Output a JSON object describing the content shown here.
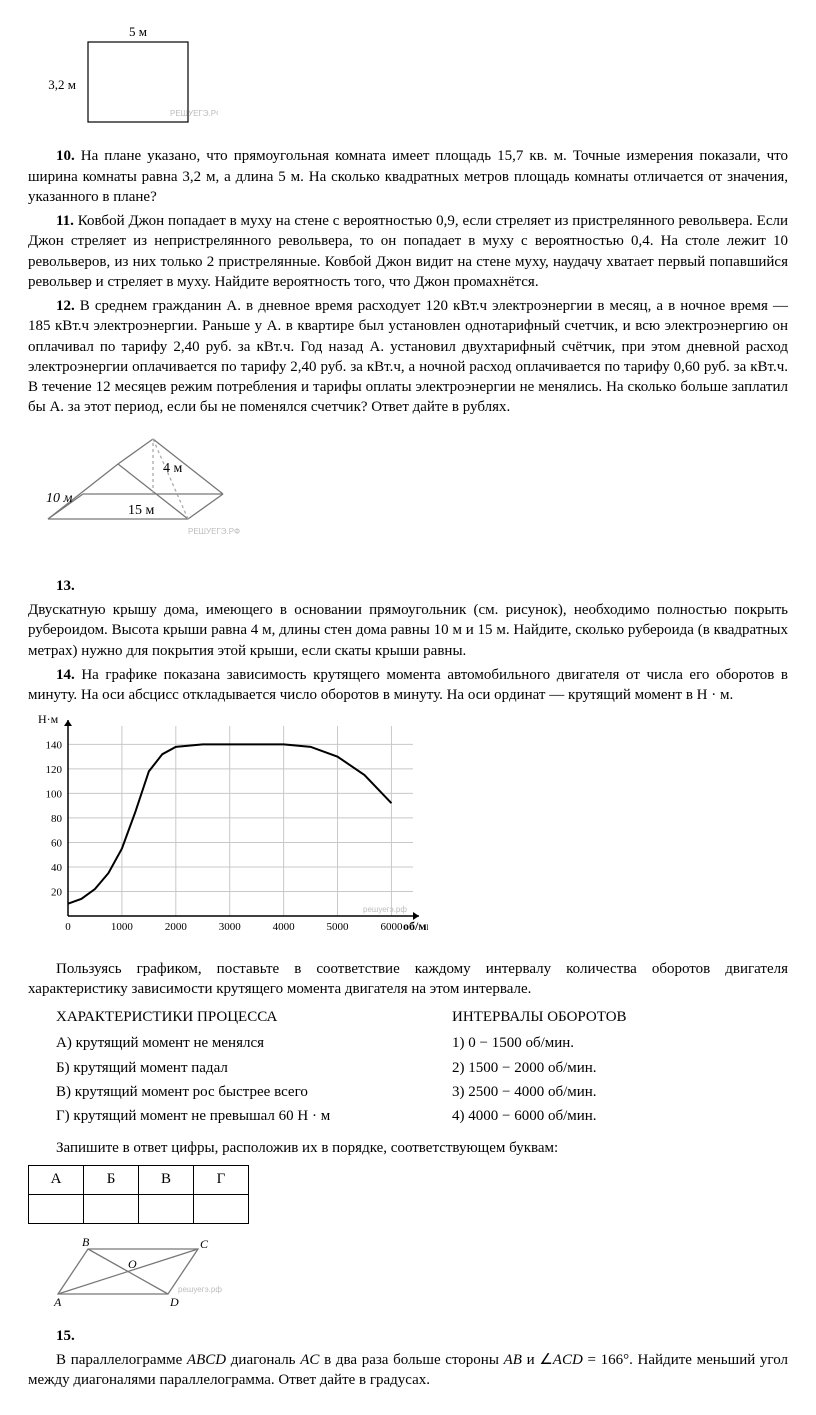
{
  "p10": {
    "fig": {
      "width_label": "5 м",
      "height_label": "3,2 м",
      "watermark": "РЕШУЕГЭ.РФ"
    },
    "num": "10.",
    "text_after": " На плане указано, что прямоугольная комната имеет площадь 15,7 кв. м. Точные измерения показали, что ширина комнаты равна 3,2 м, а длина 5 м. На сколько квадратных метров площадь комнаты отличается от значения, указанного в плане?"
  },
  "p11": {
    "num": "11.",
    "text": " Ковбой Джон попадает в муху на стене с вероятностью 0,9, если стреляет из пристрелянного револьвера. Если Джон стреляет из непристрелянного револьвера, то он попадает в муху с вероятностью 0,4. На столе лежит 10 револьверов, из них только 2 пристрелянные. Ковбой Джон видит на стене муху, наудачу хватает первый попавшийся револьвер и стреляет в муху. Найдите вероятность того, что Джон промахнётся."
  },
  "p12": {
    "num": "12.",
    "text": " В среднем гражданин А. в дневное время расходует 120 кВт.ч электроэнергии в месяц, а в ночное время — 185 кВт.ч электроэнергии. Раньше у А. в квартире был установлен однотарифный счетчик, и всю электроэнергию он оплачивал по тарифу 2,40 руб. за кВт.ч. Год назад А. установил двухтарифный счётчик, при этом дневной расход электроэнергии оплачивается по тарифу 2,40 руб. за кВт.ч, а ночной расход оплачивается по тарифу 0,60 руб. за кВт.ч. В течение 12 месяцев режим потребления и тарифы оплаты электроэнергии не менялись. На сколько больше заплатил бы А. за этот период, если бы не поменялся счетчик? Ответ дайте в рублях."
  },
  "p13": {
    "num": "13.",
    "fig": {
      "roof_h": "4 м",
      "depth": "10 м",
      "length": "15 м",
      "watermark": "РЕШУЕГЭ.РФ"
    },
    "text": "Двускатную крышу дома, имеющего в основании прямоугольник (см. рисунок), необходимо полностью покрыть рубероидом. Высота крыши равна 4 м, длины стен дома равны 10 м и 15 м. Найдите, сколько рубероида (в квадратных метрах) нужно для покрытия этой крыши, если скаты крыши равны."
  },
  "p14": {
    "num": "14.",
    "intro": " На графике показана зависимость крутящего момента автомобильного двигателя от числа его оборотов в минуту. На оси абсцисс откладывается число оборотов в минуту. На оси ординат — крутящий момент в Н · м.",
    "chart": {
      "type": "line",
      "y_label": "Н·м",
      "x_label": "об/мин",
      "x_ticks": [
        0,
        1000,
        2000,
        3000,
        4000,
        5000,
        6000
      ],
      "y_ticks": [
        20,
        40,
        60,
        80,
        100,
        120,
        140
      ],
      "ylim": [
        0,
        155
      ],
      "xlim": [
        0,
        6400
      ],
      "grid_color": "#c8c8c8",
      "axis_color": "#000000",
      "line_color": "#000000",
      "line_width": 2,
      "background": "#ffffff",
      "watermark": "решуегэ.рф",
      "points": [
        [
          0,
          10
        ],
        [
          250,
          14
        ],
        [
          500,
          22
        ],
        [
          750,
          35
        ],
        [
          1000,
          55
        ],
        [
          1250,
          85
        ],
        [
          1500,
          118
        ],
        [
          1750,
          132
        ],
        [
          2000,
          138
        ],
        [
          2500,
          140
        ],
        [
          3000,
          140
        ],
        [
          3500,
          140
        ],
        [
          4000,
          140
        ],
        [
          4500,
          138
        ],
        [
          5000,
          130
        ],
        [
          5500,
          115
        ],
        [
          6000,
          92
        ]
      ]
    },
    "mid": "Пользуясь графиком, поставьте в соответствие каждому интервалу количества оборотов двигателя характеристику зависимости крутящего момента двигателя на этом интервале.",
    "left_title": "ХАРАКТЕРИСТИКИ ПРОЦЕССА",
    "right_title": "ИНТЕРВАЛЫ ОБОРОТОВ",
    "left_items": [
      "А) крутящий момент не менялся",
      "Б) крутящий момент падал",
      "В) крутящий момент рос быстрее всего",
      "Г) крутящий момент не превышал 60 Н · м"
    ],
    "right_items": [
      "1) 0 − 1500 об/мин.",
      "2) 1500 − 2000 об/мин.",
      "3) 2500 − 4000 об/мин.",
      "4) 4000 − 6000 об/мин."
    ],
    "answer_prompt": "Запишите в ответ цифры, расположив их в порядке, соответствующем буквам:",
    "answer_headers": [
      "А",
      "Б",
      "В",
      "Г"
    ]
  },
  "p15": {
    "num": "15.",
    "fig": {
      "A": "A",
      "B": "B",
      "C": "C",
      "D": "D",
      "O": "O",
      "watermark": "решуегэ.рф"
    },
    "text_pre": "В параллелограмме ",
    "abcd": "ABCD",
    "text_mid1": " диагональ ",
    "ac": "AC",
    "text_mid2": " в два раза больше стороны ",
    "ab": "AB",
    "text_mid3": " и ∠",
    "acd": "ACD",
    "text_mid4": " = 166°. Найдите меньший угол между диагоналями параллелограмма. Ответ дайте в градусах."
  }
}
